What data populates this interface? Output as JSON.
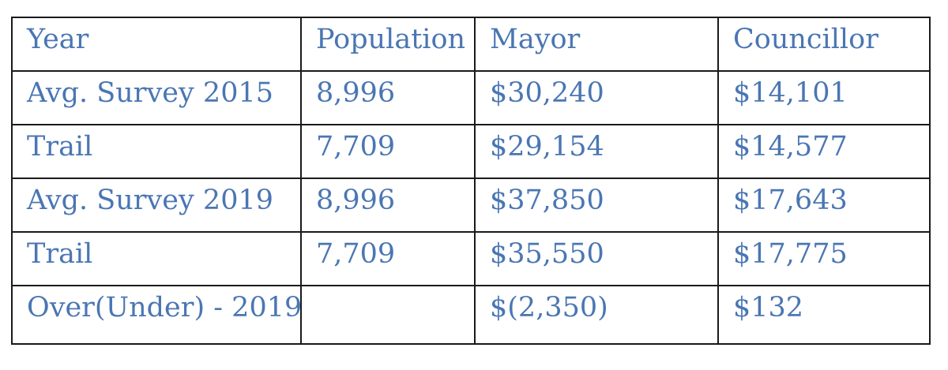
{
  "table": {
    "headers": [
      "Year",
      "Population",
      "Mayor",
      "Councillor"
    ],
    "rows": [
      [
        "Avg. Survey 2015",
        "8,996",
        "$30,240",
        "$14,101"
      ],
      [
        "Trail",
        "7,709",
        "$29,154",
        "$14,577"
      ],
      [
        "Avg. Survey 2019",
        "8,996",
        "$37,850",
        "$17,643"
      ],
      [
        "Trail",
        "7,709",
        "$35,550",
        "$17,775"
      ],
      [
        "Over(Under) - 2019",
        "",
        "$(2,350)",
        "$132"
      ]
    ]
  },
  "colors": {
    "text": "#4a76b3",
    "border": "#1a1a1a"
  }
}
